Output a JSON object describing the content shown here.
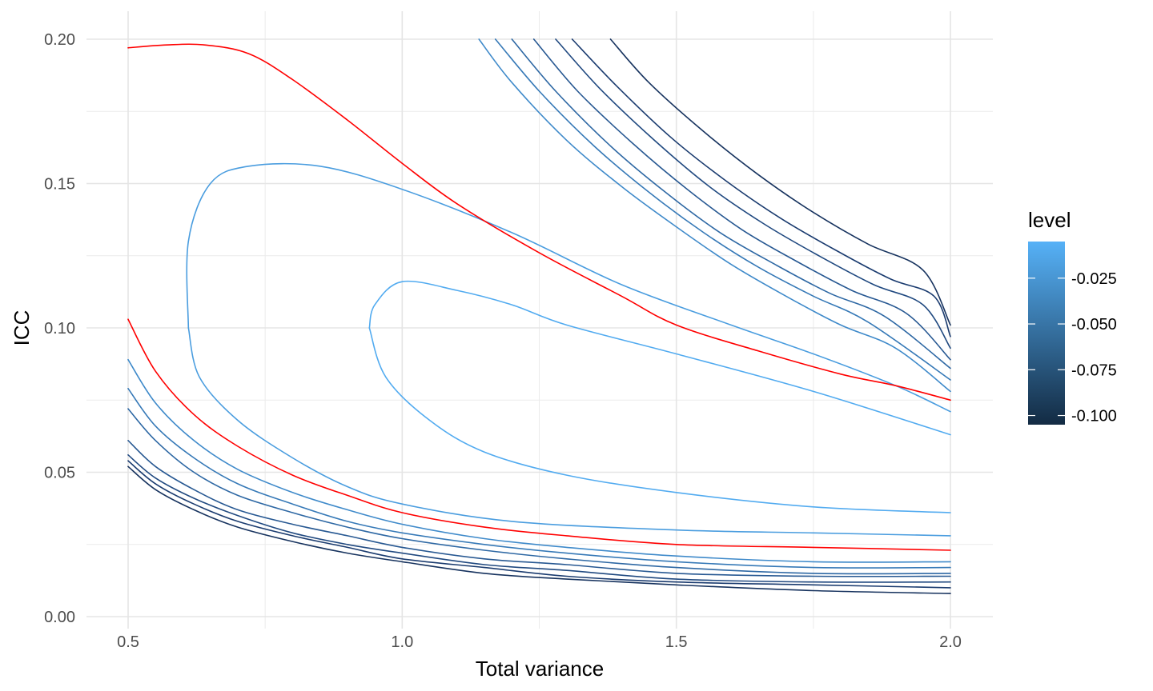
{
  "chart_data": {
    "type": "line",
    "subtype": "contour",
    "title": "",
    "xlabel": "Total variance",
    "ylabel": "ICC",
    "xlim": [
      0.5,
      2.0
    ],
    "ylim": [
      0.0,
      0.2
    ],
    "x_ticks": [
      0.5,
      1.0,
      1.5,
      2.0
    ],
    "x_tick_labels": [
      "0.5",
      "1.0",
      "1.5",
      "2.0"
    ],
    "y_ticks": [
      0.0,
      0.05,
      0.1,
      0.15,
      0.2
    ],
    "y_tick_labels": [
      "0.00",
      "0.05",
      "0.10",
      "0.15",
      "0.20"
    ],
    "grid": true,
    "legend": {
      "title": "level",
      "position": "right",
      "type": "colorbar",
      "range": [
        -0.105,
        -0.005
      ],
      "ticks": [
        -0.025,
        -0.05,
        -0.075,
        -0.1
      ],
      "tick_labels": [
        "-0.025",
        "-0.050",
        "-0.075",
        "-0.100"
      ],
      "color_low": "#132B43",
      "color_high": "#56B1F7"
    },
    "highlight_color": "#FF0000",
    "series": [
      {
        "level": -0.005,
        "color": "#52ABF0",
        "points": [
          [
            0.94,
            0.1
          ],
          [
            0.95,
            0.108
          ],
          [
            1.0,
            0.116
          ],
          [
            1.1,
            0.113
          ],
          [
            1.2,
            0.108
          ],
          [
            1.3,
            0.101
          ],
          [
            1.5,
            0.091
          ],
          [
            1.75,
            0.078
          ],
          [
            2.0,
            0.063
          ]
        ]
      },
      {
        "level": -0.005,
        "color": "#52ABF0",
        "points": [
          [
            0.94,
            0.1
          ],
          [
            0.97,
            0.083
          ],
          [
            1.05,
            0.068
          ],
          [
            1.15,
            0.057
          ],
          [
            1.3,
            0.049
          ],
          [
            1.5,
            0.043
          ],
          [
            1.75,
            0.038
          ],
          [
            2.0,
            0.036
          ]
        ]
      },
      {
        "level": -0.015,
        "color": "#4A9DDF",
        "points": [
          [
            0.61,
            0.1
          ],
          [
            0.61,
            0.13
          ],
          [
            0.65,
            0.15
          ],
          [
            0.72,
            0.156
          ],
          [
            0.85,
            0.156
          ],
          [
            1.0,
            0.148
          ],
          [
            1.2,
            0.133
          ],
          [
            1.4,
            0.115
          ],
          [
            1.6,
            0.101
          ],
          [
            1.75,
            0.091
          ],
          [
            1.9,
            0.08
          ],
          [
            2.0,
            0.071
          ]
        ]
      },
      {
        "level": -0.015,
        "color": "#4A9DDF",
        "points": [
          [
            0.61,
            0.1
          ],
          [
            0.63,
            0.083
          ],
          [
            0.7,
            0.068
          ],
          [
            0.8,
            0.055
          ],
          [
            0.9,
            0.045
          ],
          [
            1.0,
            0.039
          ],
          [
            1.2,
            0.033
          ],
          [
            1.5,
            0.03
          ],
          [
            1.75,
            0.029
          ],
          [
            2.0,
            0.028
          ]
        ]
      },
      {
        "level": -0.025,
        "color": "#FF0000",
        "highlight": true,
        "points": [
          [
            0.5,
            0.197
          ],
          [
            0.57,
            0.198
          ],
          [
            0.64,
            0.198
          ],
          [
            0.72,
            0.195
          ],
          [
            0.8,
            0.186
          ],
          [
            0.9,
            0.172
          ],
          [
            1.0,
            0.157
          ],
          [
            1.1,
            0.143
          ],
          [
            1.25,
            0.126
          ],
          [
            1.4,
            0.111
          ],
          [
            1.5,
            0.101
          ],
          [
            1.65,
            0.092
          ],
          [
            1.8,
            0.084
          ],
          [
            1.9,
            0.08
          ],
          [
            2.0,
            0.075
          ]
        ]
      },
      {
        "level": -0.025,
        "color": "#FF0000",
        "highlight": true,
        "points": [
          [
            0.5,
            0.103
          ],
          [
            0.55,
            0.085
          ],
          [
            0.62,
            0.07
          ],
          [
            0.7,
            0.059
          ],
          [
            0.8,
            0.049
          ],
          [
            0.9,
            0.042
          ],
          [
            1.0,
            0.036
          ],
          [
            1.15,
            0.031
          ],
          [
            1.3,
            0.028
          ],
          [
            1.5,
            0.025
          ],
          [
            1.75,
            0.024
          ],
          [
            2.0,
            0.023
          ]
        ]
      },
      {
        "level": -0.035,
        "color": "#3F8ACA",
        "points": [
          [
            1.14,
            0.2
          ],
          [
            1.2,
            0.185
          ],
          [
            1.3,
            0.165
          ],
          [
            1.4,
            0.149
          ],
          [
            1.5,
            0.135
          ],
          [
            1.6,
            0.122
          ],
          [
            1.7,
            0.111
          ],
          [
            1.8,
            0.101
          ],
          [
            1.9,
            0.093
          ],
          [
            2.0,
            0.078
          ]
        ]
      },
      {
        "level": -0.035,
        "color": "#3F8ACA",
        "points": [
          [
            0.5,
            0.089
          ],
          [
            0.55,
            0.074
          ],
          [
            0.62,
            0.061
          ],
          [
            0.7,
            0.051
          ],
          [
            0.8,
            0.043
          ],
          [
            0.9,
            0.037
          ],
          [
            1.0,
            0.032
          ],
          [
            1.15,
            0.027
          ],
          [
            1.3,
            0.024
          ],
          [
            1.5,
            0.021
          ],
          [
            1.75,
            0.019
          ],
          [
            2.0,
            0.019
          ]
        ]
      },
      {
        "level": -0.045,
        "color": "#3679B7",
        "points": [
          [
            1.17,
            0.2
          ],
          [
            1.25,
            0.182
          ],
          [
            1.35,
            0.163
          ],
          [
            1.45,
            0.147
          ],
          [
            1.55,
            0.133
          ],
          [
            1.65,
            0.121
          ],
          [
            1.75,
            0.111
          ],
          [
            1.85,
            0.102
          ],
          [
            2.0,
            0.082
          ]
        ]
      },
      {
        "level": -0.045,
        "color": "#3679B7",
        "points": [
          [
            0.5,
            0.079
          ],
          [
            0.55,
            0.066
          ],
          [
            0.62,
            0.055
          ],
          [
            0.7,
            0.046
          ],
          [
            0.8,
            0.039
          ],
          [
            0.9,
            0.033
          ],
          [
            1.0,
            0.029
          ],
          [
            1.15,
            0.025
          ],
          [
            1.3,
            0.022
          ],
          [
            1.5,
            0.019
          ],
          [
            1.75,
            0.017
          ],
          [
            2.0,
            0.017
          ]
        ]
      },
      {
        "level": -0.055,
        "color": "#2E68A4",
        "points": [
          [
            1.2,
            0.2
          ],
          [
            1.28,
            0.182
          ],
          [
            1.38,
            0.163
          ],
          [
            1.48,
            0.147
          ],
          [
            1.58,
            0.133
          ],
          [
            1.68,
            0.122
          ],
          [
            1.78,
            0.112
          ],
          [
            1.88,
            0.104
          ],
          [
            2.0,
            0.086
          ]
        ]
      },
      {
        "level": -0.055,
        "color": "#2E68A4",
        "points": [
          [
            0.5,
            0.072
          ],
          [
            0.55,
            0.061
          ],
          [
            0.62,
            0.05
          ],
          [
            0.7,
            0.042
          ],
          [
            0.8,
            0.036
          ],
          [
            0.9,
            0.031
          ],
          [
            1.0,
            0.027
          ],
          [
            1.15,
            0.023
          ],
          [
            1.3,
            0.02
          ],
          [
            1.5,
            0.017
          ],
          [
            1.75,
            0.015
          ],
          [
            2.0,
            0.015
          ]
        ]
      },
      {
        "level": -0.065,
        "color": "#275892",
        "points": [
          [
            1.24,
            0.2
          ],
          [
            1.32,
            0.182
          ],
          [
            1.42,
            0.164
          ],
          [
            1.52,
            0.148
          ],
          [
            1.62,
            0.134
          ],
          [
            1.72,
            0.123
          ],
          [
            1.82,
            0.113
          ],
          [
            1.92,
            0.105
          ],
          [
            2.0,
            0.089
          ]
        ]
      },
      {
        "level": -0.065,
        "color": "#275892",
        "points": [
          [
            0.5,
            0.061
          ],
          [
            0.55,
            0.052
          ],
          [
            0.62,
            0.044
          ],
          [
            0.7,
            0.037
          ],
          [
            0.8,
            0.032
          ],
          [
            0.9,
            0.028
          ],
          [
            1.0,
            0.024
          ],
          [
            1.15,
            0.02
          ],
          [
            1.3,
            0.018
          ],
          [
            1.5,
            0.015
          ],
          [
            1.75,
            0.014
          ],
          [
            2.0,
            0.014
          ]
        ]
      },
      {
        "level": -0.075,
        "color": "#204980",
        "points": [
          [
            1.28,
            0.2
          ],
          [
            1.36,
            0.183
          ],
          [
            1.46,
            0.165
          ],
          [
            1.56,
            0.149
          ],
          [
            1.66,
            0.136
          ],
          [
            1.76,
            0.125
          ],
          [
            1.86,
            0.115
          ],
          [
            1.95,
            0.108
          ],
          [
            2.0,
            0.093
          ]
        ]
      },
      {
        "level": -0.075,
        "color": "#204980",
        "points": [
          [
            0.5,
            0.056
          ],
          [
            0.55,
            0.048
          ],
          [
            0.62,
            0.041
          ],
          [
            0.7,
            0.035
          ],
          [
            0.8,
            0.029
          ],
          [
            0.9,
            0.025
          ],
          [
            1.0,
            0.022
          ],
          [
            1.15,
            0.018
          ],
          [
            1.3,
            0.016
          ],
          [
            1.5,
            0.013
          ],
          [
            1.75,
            0.012
          ],
          [
            2.0,
            0.012
          ]
        ]
      },
      {
        "level": -0.085,
        "color": "#1A3B6F",
        "points": [
          [
            1.31,
            0.2
          ],
          [
            1.39,
            0.184
          ],
          [
            1.49,
            0.166
          ],
          [
            1.59,
            0.151
          ],
          [
            1.69,
            0.138
          ],
          [
            1.79,
            0.127
          ],
          [
            1.89,
            0.117
          ],
          [
            1.97,
            0.111
          ],
          [
            2.0,
            0.097
          ]
        ]
      },
      {
        "level": -0.085,
        "color": "#1A3B6F",
        "points": [
          [
            0.5,
            0.054
          ],
          [
            0.55,
            0.046
          ],
          [
            0.62,
            0.039
          ],
          [
            0.7,
            0.033
          ],
          [
            0.8,
            0.028
          ],
          [
            0.9,
            0.024
          ],
          [
            1.0,
            0.02
          ],
          [
            1.15,
            0.017
          ],
          [
            1.3,
            0.014
          ],
          [
            1.5,
            0.012
          ],
          [
            1.75,
            0.011
          ],
          [
            2.0,
            0.01
          ]
        ]
      },
      {
        "level": -0.095,
        "color": "#16325E",
        "points": [
          [
            1.38,
            0.2
          ],
          [
            1.45,
            0.185
          ],
          [
            1.55,
            0.168
          ],
          [
            1.65,
            0.153
          ],
          [
            1.75,
            0.14
          ],
          [
            1.85,
            0.129
          ],
          [
            1.95,
            0.12
          ],
          [
            2.0,
            0.101
          ]
        ]
      },
      {
        "level": -0.095,
        "color": "#16325E",
        "points": [
          [
            0.5,
            0.052
          ],
          [
            0.55,
            0.044
          ],
          [
            0.62,
            0.037
          ],
          [
            0.7,
            0.031
          ],
          [
            0.8,
            0.026
          ],
          [
            0.9,
            0.022
          ],
          [
            1.0,
            0.019
          ],
          [
            1.15,
            0.015
          ],
          [
            1.3,
            0.013
          ],
          [
            1.5,
            0.011
          ],
          [
            1.75,
            0.009
          ],
          [
            2.0,
            0.008
          ]
        ]
      }
    ]
  }
}
